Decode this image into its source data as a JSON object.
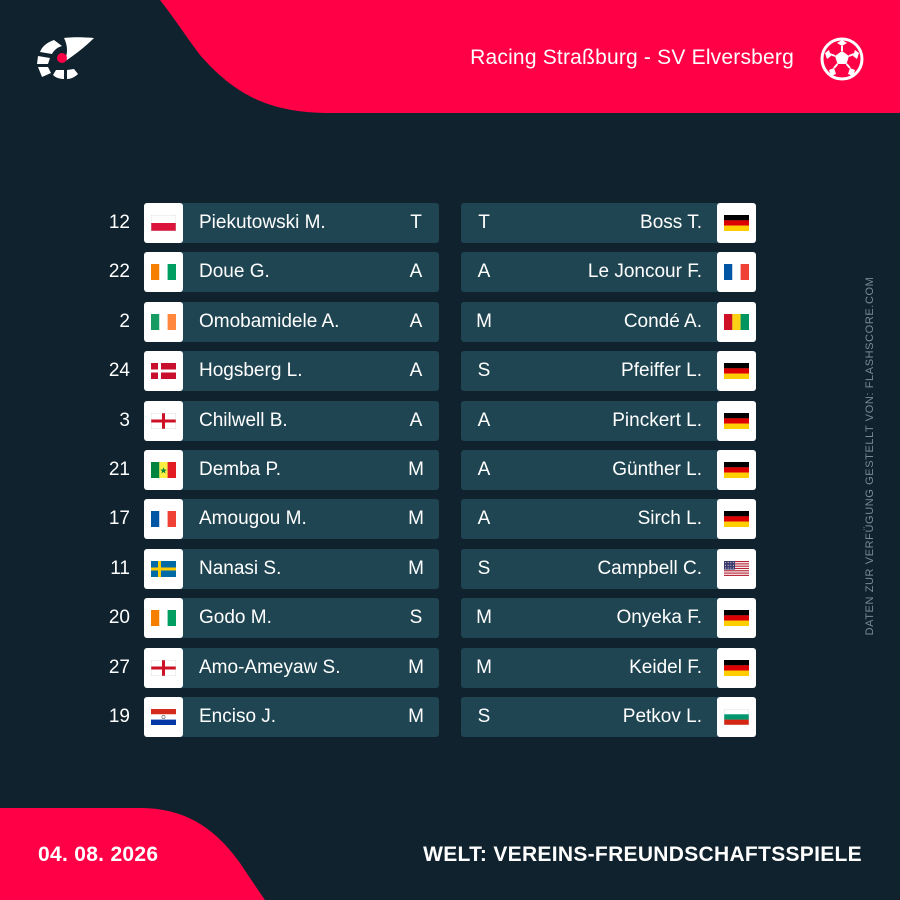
{
  "header": {
    "match_title": "Racing Straßburg - SV Elversberg",
    "brand_icon": "flashscore-logo-icon",
    "sport_icon": "football-icon",
    "accent_color": "#ff0046"
  },
  "side_credit": "DATEN ZUR VERFÜGUNG GESTELLT VON: FLASHSCORE.COM",
  "home": [
    {
      "number": "12",
      "name": "Piekutowski M.",
      "pos": "T",
      "flag": "poland"
    },
    {
      "number": "22",
      "name": "Doue G.",
      "pos": "A",
      "flag": "ivory-coast"
    },
    {
      "number": "2",
      "name": "Omobamidele A.",
      "pos": "A",
      "flag": "ireland"
    },
    {
      "number": "24",
      "name": "Hogsberg L.",
      "pos": "A",
      "flag": "denmark"
    },
    {
      "number": "3",
      "name": "Chilwell B.",
      "pos": "A",
      "flag": "england"
    },
    {
      "number": "21",
      "name": "Demba P.",
      "pos": "M",
      "flag": "senegal"
    },
    {
      "number": "17",
      "name": "Amougou M.",
      "pos": "M",
      "flag": "france"
    },
    {
      "number": "11",
      "name": "Nanasi S.",
      "pos": "M",
      "flag": "sweden"
    },
    {
      "number": "20",
      "name": "Godo M.",
      "pos": "S",
      "flag": "ivory-coast"
    },
    {
      "number": "27",
      "name": "Amo-Ameyaw S.",
      "pos": "M",
      "flag": "england"
    },
    {
      "number": "19",
      "name": "Enciso J.",
      "pos": "M",
      "flag": "paraguay"
    }
  ],
  "away": [
    {
      "name": "Boss T.",
      "pos": "T",
      "flag": "germany"
    },
    {
      "name": "Le Joncour F.",
      "pos": "A",
      "flag": "france"
    },
    {
      "name": "Condé A.",
      "pos": "M",
      "flag": "guinea"
    },
    {
      "name": "Pfeiffer L.",
      "pos": "S",
      "flag": "germany"
    },
    {
      "name": "Pinckert L.",
      "pos": "A",
      "flag": "germany"
    },
    {
      "name": "Günther L.",
      "pos": "A",
      "flag": "germany"
    },
    {
      "name": "Sirch L.",
      "pos": "A",
      "flag": "germany"
    },
    {
      "name": "Campbell C.",
      "pos": "S",
      "flag": "usa"
    },
    {
      "name": "Onyeka F.",
      "pos": "M",
      "flag": "germany"
    },
    {
      "name": "Keidel F.",
      "pos": "M",
      "flag": "germany"
    },
    {
      "name": "Petkov L.",
      "pos": "S",
      "flag": "bulgaria"
    }
  ],
  "footer": {
    "date": "04. 08. 2026",
    "competition": "WELT: VEREINS-FREUNDSCHAFTSSPIELE"
  }
}
